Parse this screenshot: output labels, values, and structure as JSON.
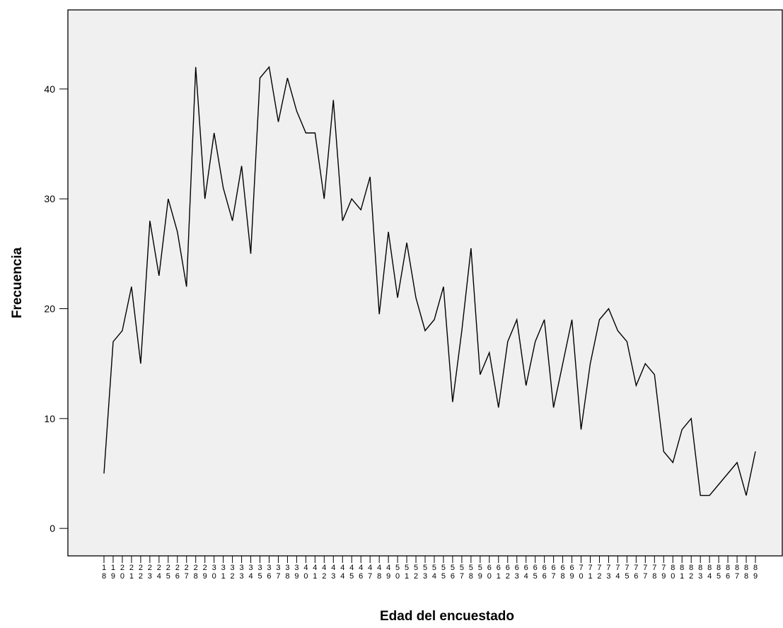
{
  "chart_data": {
    "type": "line",
    "title": "",
    "xlabel": "Edad del encuestado",
    "ylabel": "Frecuencia",
    "y_ticks": [
      0,
      10,
      20,
      30,
      40
    ],
    "ylim": [
      -2.5,
      47.2
    ],
    "x": [
      18,
      19,
      20,
      21,
      22,
      23,
      24,
      25,
      26,
      27,
      28,
      29,
      30,
      31,
      32,
      33,
      34,
      35,
      36,
      37,
      38,
      39,
      40,
      41,
      42,
      43,
      44,
      45,
      46,
      47,
      48,
      49,
      50,
      51,
      52,
      53,
      54,
      55,
      56,
      57,
      58,
      59,
      60,
      61,
      62,
      63,
      64,
      65,
      66,
      67,
      68,
      69,
      70,
      71,
      72,
      73,
      74,
      75,
      76,
      77,
      78,
      79,
      80,
      81,
      82,
      83,
      84,
      85,
      86,
      87,
      88,
      89
    ],
    "x_tick_labels": [
      "18",
      "19",
      "20",
      "21",
      "22",
      "23",
      "24",
      "25",
      "26",
      "27",
      "28",
      "29",
      "30",
      "31",
      "32",
      "33",
      "34",
      "35",
      "36",
      "37",
      "38",
      "39",
      "40",
      "41",
      "42",
      "43",
      "44",
      "45",
      "46",
      "47",
      "48",
      "49",
      "50",
      "51",
      "52",
      "53",
      "54",
      "55",
      "56",
      "57",
      "58",
      "59",
      "60",
      "61",
      "62",
      "63",
      "64",
      "65",
      "66",
      "67",
      "68",
      "69",
      "70",
      "71",
      "72",
      "73",
      "74",
      "75",
      "76",
      "77",
      "78",
      "79",
      "80",
      "81",
      "82",
      "83",
      "84",
      "85",
      "86",
      "87",
      "88",
      "89"
    ],
    "series": [
      {
        "values": [
          5,
          17,
          18,
          22,
          15,
          28,
          23,
          30,
          27,
          22,
          42,
          30,
          36,
          31,
          28,
          33,
          25,
          41,
          42,
          37,
          41,
          38,
          36,
          36,
          30,
          39,
          28,
          30,
          29,
          32,
          19.5,
          27,
          21,
          26,
          21,
          18,
          19,
          22,
          11.5,
          18,
          25.5,
          14,
          16,
          11,
          17,
          19,
          13,
          17,
          19,
          11,
          15,
          19,
          9,
          15,
          19,
          20,
          18,
          17,
          13,
          15,
          14,
          7,
          6,
          9,
          10,
          3,
          3,
          4,
          5,
          6,
          3,
          7
        ],
        "color": "#000000"
      }
    ],
    "plot_background": "#f0f0f0",
    "grid": false,
    "legend": "none"
  }
}
